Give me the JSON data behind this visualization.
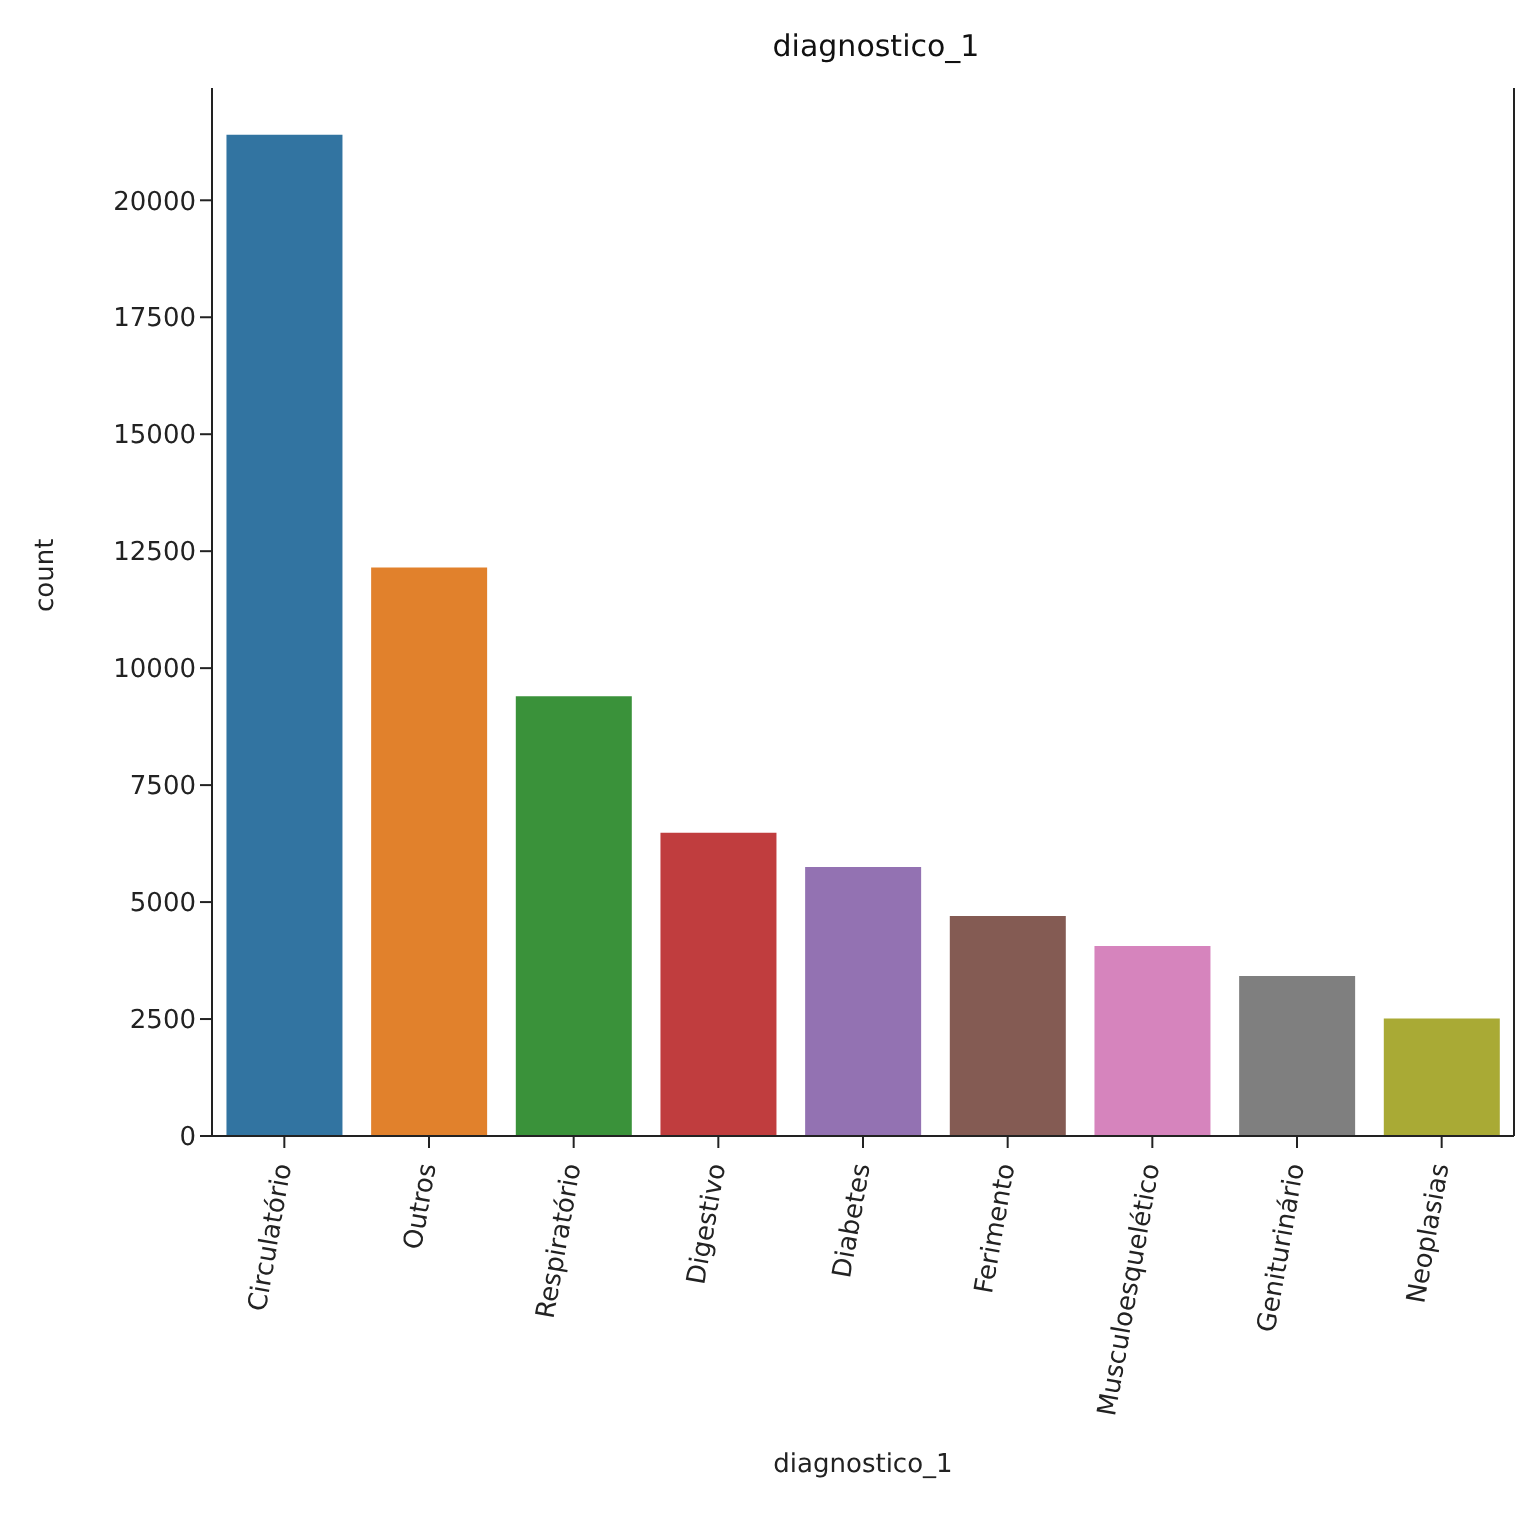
{
  "chart_data": {
    "type": "bar",
    "title": "diagnostico_1",
    "xlabel": "diagnostico_1",
    "ylabel": "count",
    "categories": [
      "Circulatório",
      "Outros",
      "Respiratório",
      "Digestivo",
      "Diabetes",
      "Ferimento",
      "Musculoesquelético",
      "Geniturinário",
      "Neoplasias"
    ],
    "values": [
      21400,
      12150,
      9400,
      6480,
      5750,
      4700,
      4060,
      3420,
      2510
    ],
    "colors": [
      "#3274a1",
      "#e1812c",
      "#3a923a",
      "#c03d3e",
      "#9372b2",
      "#845b53",
      "#d684bd",
      "#7f7f7f",
      "#a9aa35"
    ],
    "ylim": [
      0,
      22400
    ],
    "yticks": [
      0,
      2500,
      5000,
      7500,
      10000,
      12500,
      15000,
      17500,
      20000
    ],
    "grid": false,
    "legend": false
  }
}
